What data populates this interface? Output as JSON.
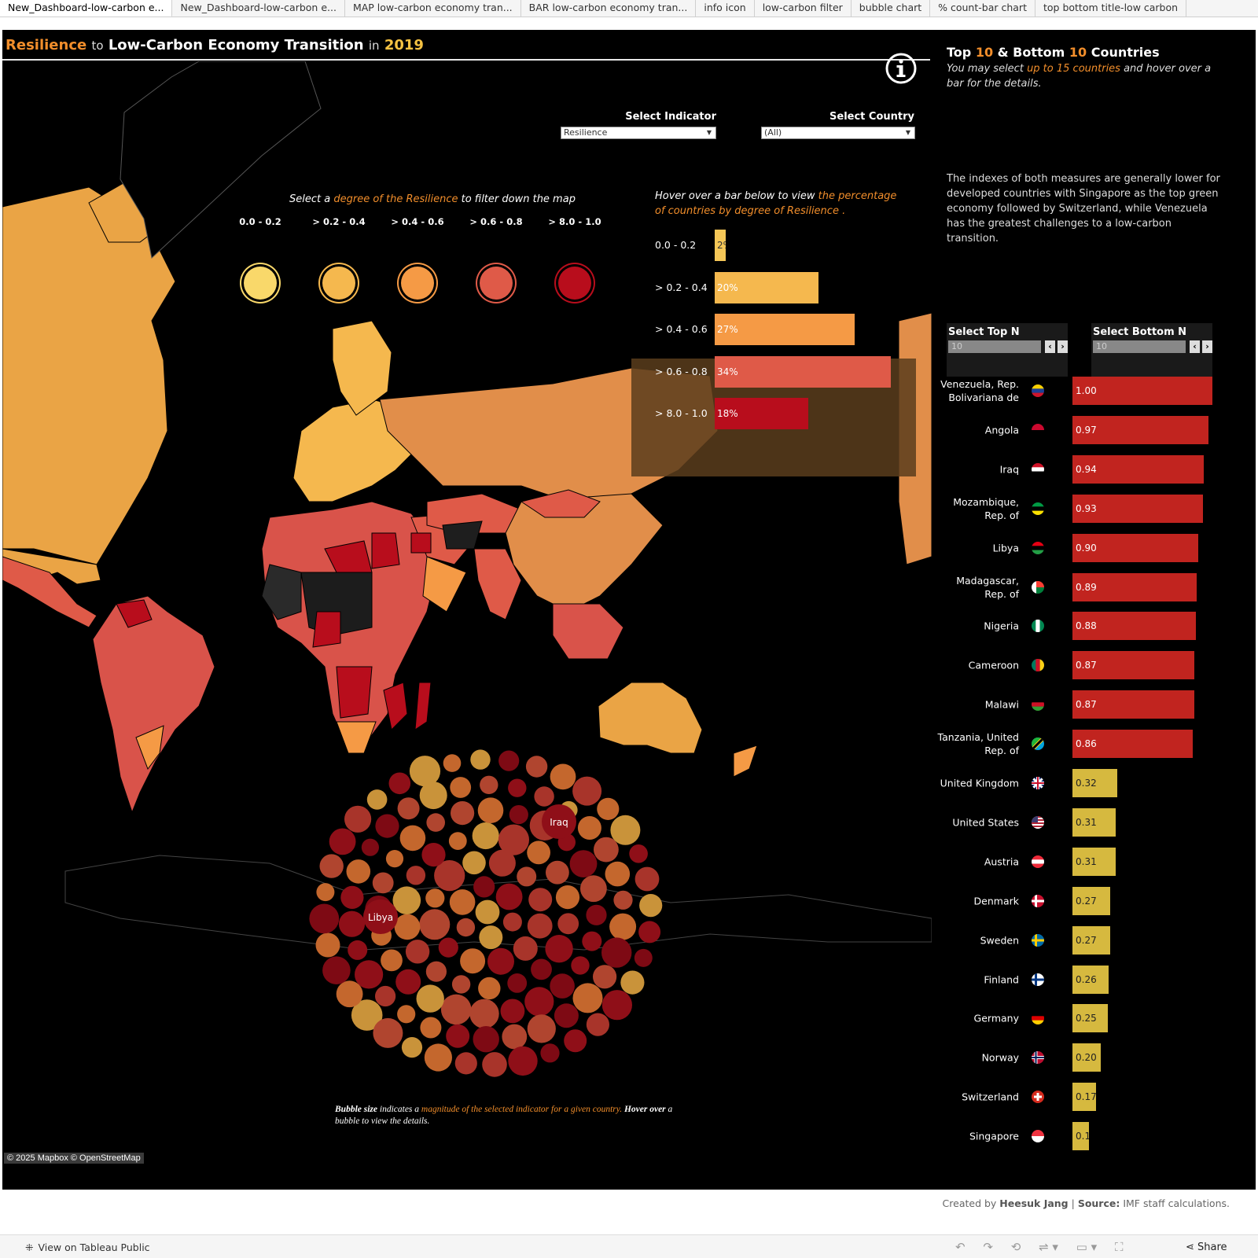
{
  "tabs": [
    {
      "label": "New_Dashboard-low-carbon e...",
      "active": true
    },
    {
      "label": "New_Dashboard-low-carbon e...",
      "active": false
    },
    {
      "label": "MAP low-carbon economy tran...",
      "active": false
    },
    {
      "label": "BAR low-carbon economy tran...",
      "active": false
    },
    {
      "label": "info icon",
      "active": false
    },
    {
      "label": "low-carbon filter",
      "active": false
    },
    {
      "label": "bubble chart",
      "active": false
    },
    {
      "label": "% count-bar chart",
      "active": false
    },
    {
      "label": "top bottom title-low carbon",
      "active": false
    }
  ],
  "header": {
    "indicator_word": "Resilience",
    "to_word": "to",
    "subject": "Low-Carbon Economy Transition",
    "in_word": "in",
    "year": "2019"
  },
  "filters": {
    "indicator_label": "Select Indicator",
    "indicator_value": "Resilience",
    "country_label": "Select Country",
    "country_value": "(All)"
  },
  "legend": {
    "prompt_a": "Select a ",
    "prompt_b": "degree of the Resilience",
    "prompt_c": "  to filter down the map",
    "ranges": [
      {
        "label": "0.0 - 0.2",
        "color": "#f9d86a"
      },
      {
        "label": "> 0.2 - 0.4",
        "color": "#f5b84e"
      },
      {
        "label": "> 0.4 - 0.6",
        "color": "#f59a45"
      },
      {
        "label": "> 0.6 - 0.8",
        "color": "#df5a48"
      },
      {
        "label": "> 8.0 - 1.0",
        "color": "#b80d1c"
      }
    ]
  },
  "pct_chart": {
    "prompt_a": "Hover over a bar below to view ",
    "prompt_b": "the percentage of countries by degree of  Resilience .",
    "bars": [
      {
        "label": "0.0 - 0.2",
        "pct": 2,
        "text": "2%",
        "color": "#f5c757"
      },
      {
        "label": "> 0.2 - 0.4",
        "pct": 20,
        "text": "20%",
        "color": "#f5b84e"
      },
      {
        "label": "> 0.4 - 0.6",
        "pct": 27,
        "text": "27%",
        "color": "#f59a45"
      },
      {
        "label": "> 0.6 - 0.8",
        "pct": 34,
        "text": "34%",
        "color": "#df5a48"
      },
      {
        "label": "> 8.0 - 1.0",
        "pct": 18,
        "text": "18%",
        "color": "#b80d1c"
      }
    ]
  },
  "bubbles": {
    "labels": [
      "Iraq",
      "Libya"
    ],
    "caption_a": "Bubble size",
    "caption_b": " indicates a ",
    "caption_c": "magnitude of the selected indicator for a given country.",
    "caption_d": " Hover over",
    "caption_e": " a bubble to view the details."
  },
  "map": {
    "credit": "© 2025 Mapbox  © OpenStreetMap"
  },
  "right_panel": {
    "title_a": "Top ",
    "top_n": "10",
    "title_b": " & Bottom ",
    "bottom_n": "10",
    "title_c": " Countries",
    "subtitle_a": "You may select ",
    "subtitle_b": "up to 15 countries",
    "subtitle_c": " and hover over a bar for the details.",
    "description": "The indexes of both measures are generally lower for developed countries with Singapore as the top green economy followed by Switzerland, while Venezuela has the greatest challenges to a low-carbon transition.",
    "top_n_label": "Select Top N",
    "top_n_value": "10",
    "bottom_n_label": "Select Bottom N",
    "bottom_n_value": "10",
    "countries": [
      {
        "name": "Venezuela, Rep. Bolivariana de",
        "value": 1.0,
        "text": "1.00",
        "flag": "venezuela"
      },
      {
        "name": "Angola",
        "value": 0.97,
        "text": "0.97",
        "flag": "angola"
      },
      {
        "name": "Iraq",
        "value": 0.94,
        "text": "0.94",
        "flag": "iraq"
      },
      {
        "name": "Mozambique, Rep. of",
        "value": 0.93,
        "text": "0.93",
        "flag": "mozambique"
      },
      {
        "name": "Libya",
        "value": 0.9,
        "text": "0.90",
        "flag": "libya"
      },
      {
        "name": "Madagascar, Rep. of",
        "value": 0.89,
        "text": "0.89",
        "flag": "madagascar"
      },
      {
        "name": "Nigeria",
        "value": 0.88,
        "text": "0.88",
        "flag": "nigeria"
      },
      {
        "name": "Cameroon",
        "value": 0.87,
        "text": "0.87",
        "flag": "cameroon"
      },
      {
        "name": "Malawi",
        "value": 0.87,
        "text": "0.87",
        "flag": "malawi"
      },
      {
        "name": "Tanzania, United Rep. of",
        "value": 0.86,
        "text": "0.86",
        "flag": "tanzania"
      },
      {
        "name": "United Kingdom",
        "value": 0.32,
        "text": "0.32",
        "flag": "uk"
      },
      {
        "name": "United States",
        "value": 0.31,
        "text": "0.31",
        "flag": "us"
      },
      {
        "name": "Austria",
        "value": 0.31,
        "text": "0.31",
        "flag": "austria"
      },
      {
        "name": "Denmark",
        "value": 0.27,
        "text": "0.27",
        "flag": "denmark"
      },
      {
        "name": "Sweden",
        "value": 0.27,
        "text": "0.27",
        "flag": "sweden"
      },
      {
        "name": "Finland",
        "value": 0.26,
        "text": "0.26",
        "flag": "finland"
      },
      {
        "name": "Germany",
        "value": 0.25,
        "text": "0.25",
        "flag": "germany"
      },
      {
        "name": "Norway",
        "value": 0.2,
        "text": "0.20",
        "flag": "norway"
      },
      {
        "name": "Switzerland",
        "value": 0.17,
        "text": "0.17",
        "flag": "switzerland"
      },
      {
        "name": "Singapore",
        "value": 0.12,
        "text": "0.1",
        "flag": "singapore"
      }
    ],
    "high_color": "#c1241f",
    "low_color": "#d6b93f"
  },
  "footer": {
    "created_by": "Created by ",
    "author": "Heesuk Jang",
    "sep": " | ",
    "source_label": "Source:",
    "source_value": " IMF staff calculations."
  },
  "toolbar": {
    "view_label": "View on Tableau Public",
    "share_label": "Share"
  }
}
